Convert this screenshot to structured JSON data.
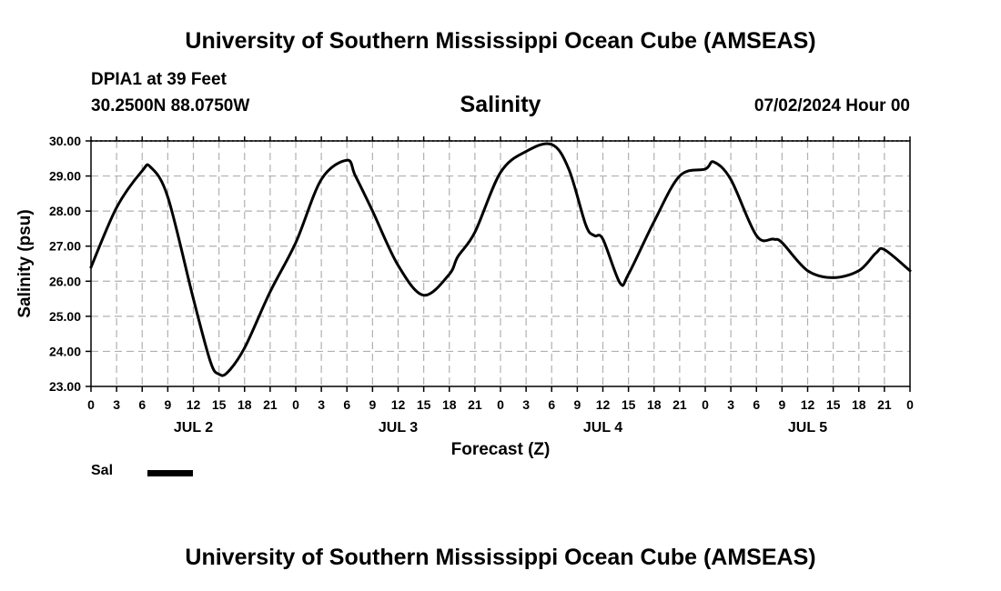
{
  "header": {
    "title": "University of Southern Mississippi Ocean Cube (AMSEAS)",
    "station": "DPIA1 at 39 Feet",
    "coords": "30.2500N  88.0750W",
    "run_time": "07/02/2024 Hour 00"
  },
  "footer": {
    "title": "University of Southern Mississippi Ocean Cube (AMSEAS)"
  },
  "legend": {
    "label": "Sal"
  },
  "chart_data": {
    "type": "line",
    "title": "Salinity",
    "xlabel": "Forecast (Z)",
    "ylabel": "Salinity (psu)",
    "ylim": [
      23.0,
      30.0
    ],
    "y_ticks": [
      "23.00",
      "24.00",
      "25.00",
      "26.00",
      "27.00",
      "28.00",
      "29.00",
      "30.00"
    ],
    "xlim": [
      0,
      96
    ],
    "x_tick_hours": [
      0,
      3,
      6,
      9,
      12,
      15,
      18,
      21,
      24,
      27,
      30,
      33,
      36,
      39,
      42,
      45,
      48,
      51,
      54,
      57,
      60,
      63,
      66,
      69,
      72,
      75,
      78,
      81,
      84,
      87,
      90,
      93,
      96
    ],
    "x_tick_labels": [
      "0",
      "3",
      "6",
      "9",
      "12",
      "15",
      "18",
      "21",
      "0",
      "3",
      "6",
      "9",
      "12",
      "15",
      "18",
      "21",
      "0",
      "3",
      "6",
      "9",
      "12",
      "15",
      "18",
      "21",
      "0",
      "3",
      "6",
      "9",
      "12",
      "15",
      "18",
      "21",
      "0"
    ],
    "day_labels": [
      {
        "label": "JUL 2",
        "hour": 12
      },
      {
        "label": "JUL 3",
        "hour": 36
      },
      {
        "label": "JUL 4",
        "hour": 60
      },
      {
        "label": "JUL 5",
        "hour": 84
      }
    ],
    "grid": true,
    "series": [
      {
        "name": "Sal",
        "color": "#000000",
        "x": [
          0,
          3,
          6,
          7,
          9,
          12,
          14,
          15,
          16,
          18,
          21,
          24,
          27,
          30,
          31,
          33,
          36,
          39,
          42,
          43,
          45,
          48,
          51,
          54,
          56,
          58,
          59,
          60,
          62,
          63,
          66,
          69,
          72,
          73,
          75,
          78,
          80,
          81,
          84,
          87,
          90,
          92,
          93,
          96
        ],
        "values": [
          26.4,
          28.1,
          29.15,
          29.25,
          28.4,
          25.5,
          23.7,
          23.35,
          23.4,
          24.1,
          25.7,
          27.1,
          28.9,
          29.45,
          29.0,
          28.0,
          26.45,
          25.6,
          26.2,
          26.7,
          27.4,
          29.1,
          29.7,
          29.9,
          29.2,
          27.6,
          27.3,
          27.2,
          25.95,
          26.2,
          27.7,
          29.0,
          29.2,
          29.4,
          28.9,
          27.3,
          27.2,
          27.1,
          26.3,
          26.1,
          26.3,
          26.8,
          26.9,
          26.3
        ]
      }
    ]
  }
}
